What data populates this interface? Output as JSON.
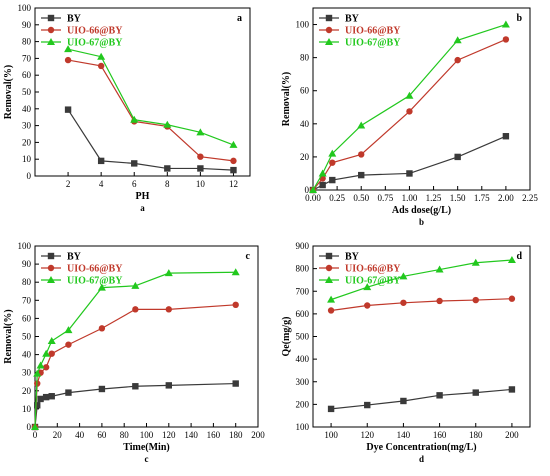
{
  "colors": {
    "BY": "#3a3a3a",
    "UIO-66@BY": "#c0392b",
    "UIO-67@BY": "#22c81e",
    "axis": "#000000",
    "legend_BY": "#000000",
    "legend_UIO66": "#c0392b",
    "legend_UIO67": "#22c81e"
  },
  "chart_data": [
    {
      "type": "line",
      "panel_letter": "a",
      "caption": "a",
      "xlabel": "PH",
      "ylabel": "Removal(%)",
      "xlim": [
        0,
        13
      ],
      "ylim": [
        0,
        100
      ],
      "xticks": [
        2,
        4,
        6,
        8,
        10,
        12
      ],
      "yticks": [
        0,
        10,
        20,
        30,
        40,
        50,
        60,
        70,
        80,
        90,
        100
      ],
      "legend_position": "top-left",
      "series": [
        {
          "name": "BY",
          "marker": "square",
          "x": [
            2,
            4,
            6,
            8,
            10,
            12
          ],
          "values": [
            39.5,
            9,
            7.5,
            4.5,
            4.5,
            3.5
          ]
        },
        {
          "name": "UIO-66@BY",
          "marker": "circle",
          "x": [
            2,
            4,
            6,
            8,
            10,
            12
          ],
          "values": [
            69,
            65.5,
            32.5,
            29.5,
            11.5,
            9
          ]
        },
        {
          "name": "UIO-67@BY",
          "marker": "triangle",
          "x": [
            2,
            4,
            6,
            8,
            10,
            12
          ],
          "values": [
            75.5,
            71,
            33.5,
            30.5,
            26,
            18.5
          ]
        }
      ]
    },
    {
      "type": "line",
      "panel_letter": "b",
      "caption": "b",
      "xlabel": "Ads dose(g/L)",
      "ylabel": "Removal(%)",
      "xlim": [
        0,
        2.25
      ],
      "ylim": [
        0,
        110
      ],
      "xticks": [
        0.0,
        0.25,
        0.5,
        0.75,
        1.0,
        1.25,
        1.5,
        1.75,
        2.0,
        2.25
      ],
      "xtick_labels": [
        "0.00",
        "0.25",
        "0.50",
        "0.75",
        "1.00",
        "1.25",
        "1.50",
        "1.75",
        "2.00",
        "2.25"
      ],
      "yticks": [
        0,
        20,
        40,
        60,
        80,
        100
      ],
      "legend_position": "top-left",
      "series": [
        {
          "name": "BY",
          "marker": "square",
          "x": [
            0,
            0.1,
            0.2,
            0.5,
            1.0,
            1.5,
            2.0
          ],
          "values": [
            0,
            3,
            6,
            9,
            10,
            20,
            32.5
          ]
        },
        {
          "name": "UIO-66@BY",
          "marker": "circle",
          "x": [
            0,
            0.1,
            0.2,
            0.5,
            1.0,
            1.5,
            2.0
          ],
          "values": [
            0,
            7,
            16.5,
            21.5,
            47.5,
            78.5,
            91
          ]
        },
        {
          "name": "UIO-67@BY",
          "marker": "triangle",
          "x": [
            0,
            0.1,
            0.2,
            0.5,
            1.0,
            1.5,
            2.0
          ],
          "values": [
            0,
            10,
            22,
            39,
            57,
            90.5,
            100
          ]
        }
      ]
    },
    {
      "type": "line",
      "panel_letter": "c",
      "caption": "c",
      "xlabel": "Time(Min)",
      "ylabel": "Removal(%)",
      "xlim": [
        0,
        200
      ],
      "ylim": [
        0,
        100
      ],
      "xticks": [
        0,
        20,
        40,
        60,
        80,
        100,
        120,
        140,
        160,
        180,
        200
      ],
      "yticks": [
        0,
        10,
        20,
        30,
        40,
        50,
        60,
        70,
        80,
        90,
        100
      ],
      "legend_position": "top-left",
      "series": [
        {
          "name": "BY",
          "marker": "square",
          "x": [
            0,
            2,
            5,
            10,
            15,
            30,
            60,
            90,
            120,
            180
          ],
          "values": [
            0,
            12,
            15.5,
            16.5,
            17,
            19,
            21,
            22.5,
            23,
            24
          ]
        },
        {
          "name": "UIO-66@BY",
          "marker": "circle",
          "x": [
            0,
            2,
            5,
            10,
            15,
            30,
            60,
            90,
            120,
            180
          ],
          "values": [
            0,
            24,
            30,
            33,
            40.5,
            45.5,
            54.5,
            65,
            65,
            67.5
          ]
        },
        {
          "name": "UIO-67@BY",
          "marker": "triangle",
          "x": [
            0,
            2,
            5,
            10,
            15,
            30,
            60,
            90,
            120,
            180
          ],
          "values": [
            0,
            29.5,
            34,
            40.5,
            47.5,
            53.5,
            77,
            78,
            85,
            85.5
          ]
        }
      ]
    },
    {
      "type": "line",
      "panel_letter": "d",
      "caption": "d",
      "xlabel": "Dye Concentration(mg/L)",
      "ylabel": "Qe(mg/g)",
      "xlim": [
        90,
        210
      ],
      "ylim": [
        100,
        900
      ],
      "xticks": [
        100,
        120,
        140,
        160,
        180,
        200
      ],
      "yticks": [
        100,
        200,
        300,
        400,
        500,
        600,
        700,
        800,
        900
      ],
      "legend_position": "top-left",
      "series": [
        {
          "name": "BY",
          "marker": "square",
          "x": [
            100,
            120,
            140,
            160,
            180,
            200
          ],
          "values": [
            180,
            197,
            215,
            240,
            252,
            266
          ]
        },
        {
          "name": "UIO-66@BY",
          "marker": "circle",
          "x": [
            100,
            120,
            140,
            160,
            180,
            200
          ],
          "values": [
            615,
            637,
            649,
            657,
            661,
            667
          ]
        },
        {
          "name": "UIO-67@BY",
          "marker": "triangle",
          "x": [
            100,
            120,
            140,
            160,
            180,
            200
          ],
          "values": [
            663,
            718,
            766,
            796,
            826,
            838
          ]
        }
      ]
    }
  ]
}
